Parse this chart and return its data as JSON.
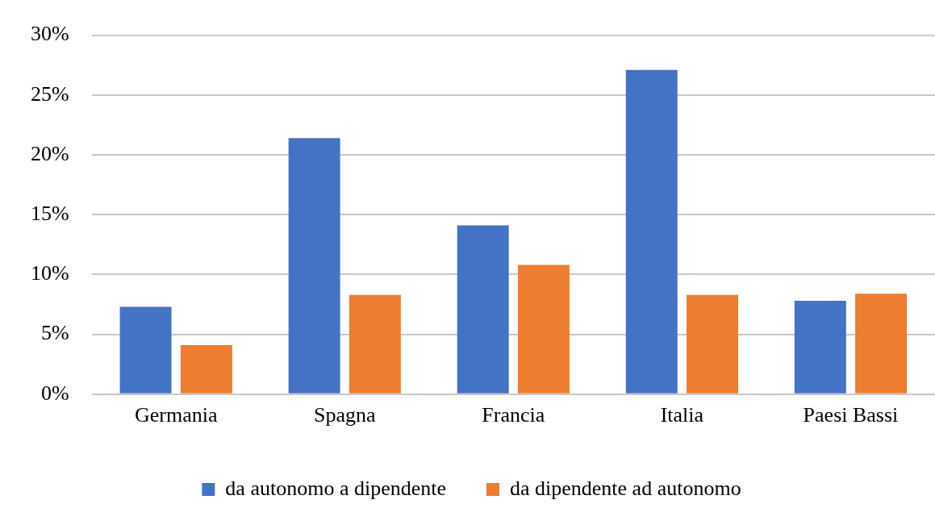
{
  "chart_data": {
    "type": "bar",
    "categories": [
      "Germania",
      "Spagna",
      "Francia",
      "Italia",
      "Paesi Bassi"
    ],
    "series": [
      {
        "name": "da autonomo a dipendente",
        "color": "#4472c4",
        "values": [
          7.3,
          21.4,
          14.1,
          27.1,
          7.8
        ]
      },
      {
        "name": "da dipendente ad autonomo",
        "color": "#ed7d31",
        "values": [
          4.1,
          8.3,
          10.8,
          8.3,
          8.4
        ]
      }
    ],
    "ylim": [
      0,
      30
    ],
    "yticks": [
      {
        "value": 0,
        "label": "0%"
      },
      {
        "value": 5,
        "label": "5%"
      },
      {
        "value": 10,
        "label": "10%"
      },
      {
        "value": 15,
        "label": "15%"
      },
      {
        "value": 20,
        "label": "20%"
      },
      {
        "value": 25,
        "label": "25%"
      },
      {
        "value": 30,
        "label": "30%"
      }
    ],
    "grid": "y",
    "legend": "bottom"
  }
}
